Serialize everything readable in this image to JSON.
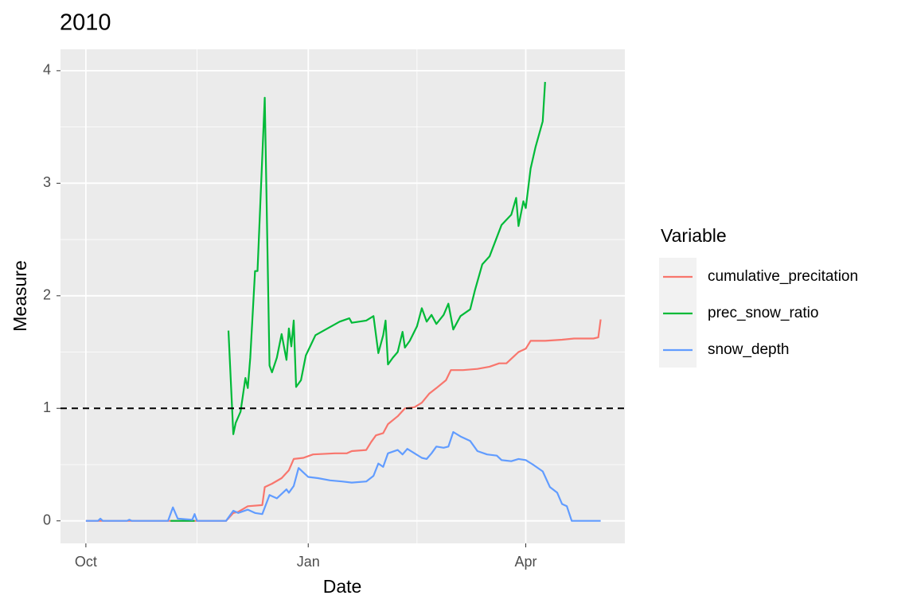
{
  "chart_data": {
    "type": "line",
    "title": "2010",
    "x_label": "Date",
    "y_label": "Measure",
    "xlim": [
      -10.5,
      223
    ],
    "ylim": [
      -0.2,
      4.19
    ],
    "xticks": [
      {
        "value": 0,
        "label": "Oct"
      },
      {
        "value": 92,
        "label": "Jan"
      },
      {
        "value": 182,
        "label": "Apr"
      }
    ],
    "yticks": [
      0,
      1,
      2,
      3,
      4
    ],
    "grid": true,
    "hline": 1,
    "legend_title": "Variable",
    "legend_position": "right",
    "series": [
      {
        "name": "cumulative_precitation",
        "color": "#F8766D",
        "x": [
          0,
          58,
          61,
          63,
          67,
          73,
          74,
          77,
          81,
          84,
          86,
          90,
          94,
          103,
          108,
          110,
          116,
          118,
          120,
          123,
          125,
          129,
          132,
          136,
          139,
          142,
          145,
          149,
          151,
          156,
          162,
          167,
          171,
          174,
          177,
          179,
          182,
          184,
          190,
          197,
          202,
          210,
          212,
          213
        ],
        "values": [
          0,
          0,
          0.07,
          0.08,
          0.13,
          0.14,
          0.3,
          0.33,
          0.38,
          0.45,
          0.55,
          0.56,
          0.59,
          0.6,
          0.6,
          0.62,
          0.63,
          0.7,
          0.76,
          0.78,
          0.86,
          0.93,
          1.0,
          1.01,
          1.05,
          1.13,
          1.18,
          1.25,
          1.34,
          1.34,
          1.35,
          1.37,
          1.4,
          1.4,
          1.46,
          1.5,
          1.53,
          1.6,
          1.6,
          1.61,
          1.62,
          1.62,
          1.63,
          1.79
        ]
      },
      {
        "name": "prec_snow_ratio",
        "color": "#00BA38",
        "x": [
          35,
          45,
          52,
          59,
          61,
          62,
          64,
          66,
          67,
          68,
          70,
          71,
          74,
          76,
          77,
          79,
          81,
          83,
          84,
          85,
          86,
          87,
          89,
          91,
          93,
          95,
          100,
          105,
          109,
          110,
          116,
          119,
          121,
          123,
          124,
          125,
          127,
          129,
          131,
          132,
          134,
          137,
          139,
          141,
          143,
          145,
          148,
          150,
          152,
          155,
          159,
          161,
          164,
          167,
          172,
          176,
          178,
          179,
          181,
          182,
          184,
          186,
          189,
          190
        ],
        "values": [
          0,
          0,
          null,
          1.69,
          0.77,
          0.87,
          0.97,
          1.27,
          1.18,
          1.45,
          2.22,
          2.22,
          3.76,
          1.38,
          1.32,
          1.45,
          1.66,
          1.43,
          1.71,
          1.55,
          1.78,
          1.19,
          1.25,
          1.47,
          1.56,
          1.65,
          1.71,
          1.77,
          1.8,
          1.76,
          1.78,
          1.82,
          1.49,
          1.65,
          1.78,
          1.39,
          1.45,
          1.5,
          1.68,
          1.54,
          1.6,
          1.73,
          1.89,
          1.77,
          1.83,
          1.75,
          1.83,
          1.93,
          1.7,
          1.82,
          1.88,
          2.05,
          2.28,
          2.35,
          2.63,
          2.72,
          2.87,
          2.62,
          2.84,
          2.78,
          3.13,
          3.32,
          3.55,
          3.9
        ]
      },
      {
        "name": "snow_depth",
        "color": "#619CFF",
        "x": [
          0,
          5,
          6,
          7,
          17,
          18,
          19,
          34,
          36,
          38,
          44,
          45,
          46,
          58,
          61,
          63,
          67,
          70,
          73,
          76,
          79,
          83,
          84,
          86,
          88,
          90,
          92,
          96,
          101,
          106,
          110,
          116,
          119,
          121,
          123,
          125,
          129,
          131,
          133,
          136,
          139,
          141,
          143,
          145,
          148,
          150,
          152,
          155,
          159,
          162,
          166,
          170,
          172,
          176,
          179,
          182,
          185,
          189,
          192,
          195,
          197,
          199,
          201,
          213
        ],
        "values": [
          0,
          0,
          0.02,
          0,
          0,
          0.01,
          0,
          0,
          0.12,
          0.02,
          0.01,
          0.06,
          0,
          0,
          0.09,
          0.07,
          0.1,
          0.07,
          0.06,
          0.23,
          0.2,
          0.28,
          0.25,
          0.31,
          0.47,
          0.43,
          0.39,
          0.38,
          0.36,
          0.35,
          0.34,
          0.35,
          0.4,
          0.51,
          0.48,
          0.6,
          0.63,
          0.59,
          0.64,
          0.6,
          0.56,
          0.55,
          0.6,
          0.66,
          0.65,
          0.66,
          0.79,
          0.75,
          0.71,
          0.62,
          0.59,
          0.58,
          0.54,
          0.53,
          0.55,
          0.54,
          0.5,
          0.44,
          0.3,
          0.25,
          0.15,
          0.13,
          0,
          0
        ]
      }
    ]
  }
}
